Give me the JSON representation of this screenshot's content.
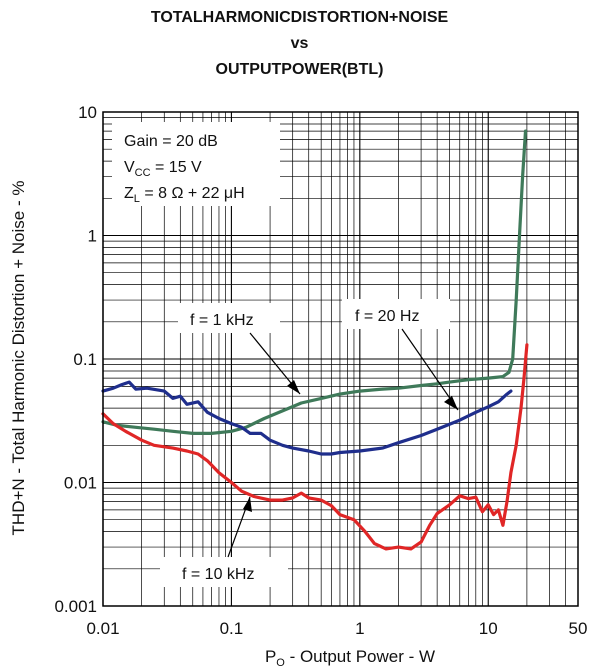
{
  "chart_data": {
    "type": "line",
    "title": [
      "TOTALHARMONICDISTORTION+NOISE",
      "vs",
      "OUTPUTPOWER(BTL)"
    ],
    "xlabel": {
      "main": "P",
      "sub": "O",
      "rest": " - Output Power - W"
    },
    "ylabel": "THD+N - Total Harmonic Distortion + Noise - %",
    "x_scale": "log",
    "y_scale": "log",
    "xlim": [
      0.01,
      50
    ],
    "ylim": [
      0.001,
      10
    ],
    "x_ticks": [
      {
        "value": 0.01,
        "label": "0.01"
      },
      {
        "value": 0.1,
        "label": "0.1"
      },
      {
        "value": 1,
        "label": "1"
      },
      {
        "value": 10,
        "label": "10"
      },
      {
        "value": 50,
        "label": "50"
      }
    ],
    "y_ticks": [
      {
        "value": 0.001,
        "label": "0.001"
      },
      {
        "value": 0.01,
        "label": "0.01"
      },
      {
        "value": 0.1,
        "label": "0.1"
      },
      {
        "value": 1,
        "label": "1"
      },
      {
        "value": 10,
        "label": "10"
      }
    ],
    "grid": true,
    "conditions": {
      "gain": "Gain = 20 dB",
      "vcc": {
        "main": "V",
        "sub": "CC",
        "rest": " = 15 V"
      },
      "zl": {
        "main": "Z",
        "sub": "L",
        "rest": " = 8 Ω + 22 μH"
      }
    },
    "series": [
      {
        "name": "f = 1 kHz",
        "color": "#3f7a5a",
        "points": [
          [
            0.01,
            0.031
          ],
          [
            0.013,
            0.029
          ],
          [
            0.018,
            0.028
          ],
          [
            0.025,
            0.027
          ],
          [
            0.035,
            0.026
          ],
          [
            0.05,
            0.025
          ],
          [
            0.07,
            0.025
          ],
          [
            0.1,
            0.026
          ],
          [
            0.13,
            0.028
          ],
          [
            0.18,
            0.033
          ],
          [
            0.25,
            0.038
          ],
          [
            0.35,
            0.044
          ],
          [
            0.5,
            0.048
          ],
          [
            0.7,
            0.052
          ],
          [
            1.0,
            0.055
          ],
          [
            1.5,
            0.057
          ],
          [
            2.0,
            0.058
          ],
          [
            3.0,
            0.061
          ],
          [
            4.0,
            0.063
          ],
          [
            5.0,
            0.065
          ],
          [
            7.0,
            0.068
          ],
          [
            10.0,
            0.07
          ],
          [
            13.0,
            0.072
          ],
          [
            14.5,
            0.078
          ],
          [
            15.5,
            0.1
          ],
          [
            16.5,
            0.3
          ],
          [
            17.5,
            1.0
          ],
          [
            18.5,
            3.0
          ],
          [
            19.5,
            7.0
          ]
        ]
      },
      {
        "name": "f = 20 Hz",
        "color": "#1f2e8c",
        "points": [
          [
            0.01,
            0.055
          ],
          [
            0.012,
            0.058
          ],
          [
            0.014,
            0.062
          ],
          [
            0.016,
            0.065
          ],
          [
            0.018,
            0.057
          ],
          [
            0.022,
            0.058
          ],
          [
            0.03,
            0.055
          ],
          [
            0.035,
            0.048
          ],
          [
            0.04,
            0.05
          ],
          [
            0.045,
            0.043
          ],
          [
            0.055,
            0.045
          ],
          [
            0.065,
            0.037
          ],
          [
            0.08,
            0.033
          ],
          [
            0.1,
            0.03
          ],
          [
            0.12,
            0.028
          ],
          [
            0.14,
            0.025
          ],
          [
            0.17,
            0.025
          ],
          [
            0.2,
            0.022
          ],
          [
            0.25,
            0.02
          ],
          [
            0.3,
            0.019
          ],
          [
            0.4,
            0.018
          ],
          [
            0.5,
            0.017
          ],
          [
            0.6,
            0.017
          ],
          [
            0.7,
            0.0175
          ],
          [
            1.0,
            0.018
          ],
          [
            1.5,
            0.019
          ],
          [
            2.0,
            0.021
          ],
          [
            3.0,
            0.024
          ],
          [
            4.0,
            0.027
          ],
          [
            6.0,
            0.032
          ],
          [
            8.0,
            0.037
          ],
          [
            10.0,
            0.041
          ],
          [
            12.0,
            0.045
          ],
          [
            14.0,
            0.052
          ],
          [
            15.0,
            0.055
          ]
        ]
      },
      {
        "name": "f = 10 kHz",
        "color": "#e02626",
        "points": [
          [
            0.01,
            0.036
          ],
          [
            0.012,
            0.03
          ],
          [
            0.015,
            0.026
          ],
          [
            0.02,
            0.022
          ],
          [
            0.025,
            0.02
          ],
          [
            0.035,
            0.019
          ],
          [
            0.045,
            0.018
          ],
          [
            0.055,
            0.017
          ],
          [
            0.065,
            0.015
          ],
          [
            0.08,
            0.012
          ],
          [
            0.1,
            0.01
          ],
          [
            0.12,
            0.0085
          ],
          [
            0.15,
            0.0077
          ],
          [
            0.2,
            0.0072
          ],
          [
            0.25,
            0.0072
          ],
          [
            0.3,
            0.0075
          ],
          [
            0.35,
            0.0082
          ],
          [
            0.4,
            0.0075
          ],
          [
            0.5,
            0.0072
          ],
          [
            0.6,
            0.0065
          ],
          [
            0.7,
            0.0055
          ],
          [
            0.9,
            0.005
          ],
          [
            1.1,
            0.004
          ],
          [
            1.3,
            0.0032
          ],
          [
            1.6,
            0.0029
          ],
          [
            2.0,
            0.003
          ],
          [
            2.5,
            0.0029
          ],
          [
            3.0,
            0.0033
          ],
          [
            3.5,
            0.0045
          ],
          [
            4.0,
            0.0056
          ],
          [
            5.0,
            0.0066
          ],
          [
            6.0,
            0.0078
          ],
          [
            7.0,
            0.0074
          ],
          [
            8.0,
            0.0076
          ],
          [
            9.0,
            0.0058
          ],
          [
            10.0,
            0.0066
          ],
          [
            11.0,
            0.0055
          ],
          [
            12.0,
            0.006
          ],
          [
            13.0,
            0.0045
          ],
          [
            14.0,
            0.007
          ],
          [
            15.0,
            0.012
          ],
          [
            16.5,
            0.02
          ],
          [
            18.0,
            0.04
          ],
          [
            19.0,
            0.07
          ],
          [
            20.0,
            0.13
          ]
        ]
      }
    ],
    "annotations": [
      {
        "id": "label-1khz",
        "text": "f = 1 kHz",
        "arrow_to": [
          0.33,
          0.045
        ]
      },
      {
        "id": "label-20hz",
        "text": "f = 20 Hz",
        "arrow_to": [
          6.5,
          0.034
        ]
      },
      {
        "id": "label-10khz",
        "text": "f = 10 kHz",
        "arrow_to": [
          0.13,
          0.0082
        ]
      }
    ]
  }
}
